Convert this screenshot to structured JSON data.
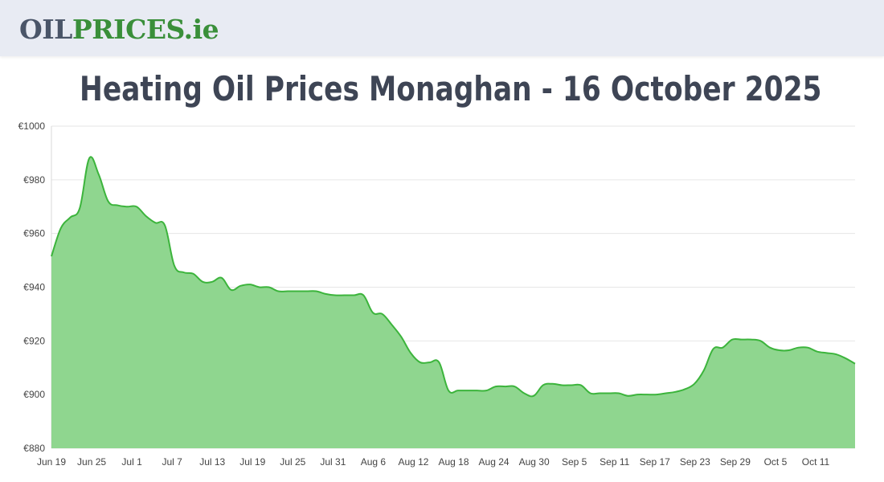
{
  "header": {
    "logo": {
      "oil": "OIL",
      "prices": "PRICES",
      "ie": ".ie"
    }
  },
  "page_title": "Heating Oil Prices Monaghan - 16 October 2025",
  "colors": {
    "line": "#3cb43c",
    "fill": "#8fd68f",
    "grid": "#e6e6e6",
    "header_bg": "#e8ebf3"
  },
  "chart_data": {
    "type": "area",
    "title": "Heating Oil Prices Monaghan - 16 October 2025",
    "xlabel": "",
    "ylabel": "",
    "ylim": [
      880,
      1000
    ],
    "y_ticks": [
      "€880",
      "€900",
      "€920",
      "€940",
      "€960",
      "€980",
      "€1000"
    ],
    "y_tick_values": [
      880,
      900,
      920,
      940,
      960,
      980,
      1000
    ],
    "x_tick_labels": [
      "Jun 19",
      "Jun 25",
      "Jul 1",
      "Jul 7",
      "Jul 13",
      "Jul 19",
      "Jul 25",
      "Jul 31",
      "Aug 6",
      "Aug 12",
      "Aug 18",
      "Aug 24",
      "Aug 30",
      "Sep 5",
      "Sep 11",
      "Sep 17",
      "Sep 23",
      "Sep 29",
      "Oct 5",
      "Oct 11"
    ],
    "grid": true,
    "legend": "none",
    "series": [
      {
        "values": [
          951.5,
          962,
          966,
          969.5,
          988,
          982,
          972,
          970.5,
          970,
          970,
          966.5,
          964,
          963,
          948,
          945.5,
          945,
          942,
          942,
          943.5,
          939,
          940.5,
          941,
          940,
          940,
          938.5,
          938.5,
          938.5,
          938.5,
          938.5,
          937.5,
          937,
          937,
          937,
          937,
          930.5,
          930,
          926,
          921.5,
          915.5,
          912,
          912,
          912,
          901.5,
          901.5,
          901.5,
          901.5,
          901.5,
          903,
          903,
          903,
          900.5,
          899.5,
          903.5,
          904,
          903.5,
          903.5,
          903.5,
          900.5,
          900.5,
          900.5,
          900.5,
          899.5,
          900,
          900,
          900,
          900.5,
          901,
          902,
          904,
          909,
          917,
          917.5,
          920.5,
          920.5,
          920.5,
          920,
          917.5,
          916.5,
          916.5,
          917.5,
          917.5,
          916,
          915.5,
          915,
          913.5,
          911.5
        ]
      }
    ]
  }
}
